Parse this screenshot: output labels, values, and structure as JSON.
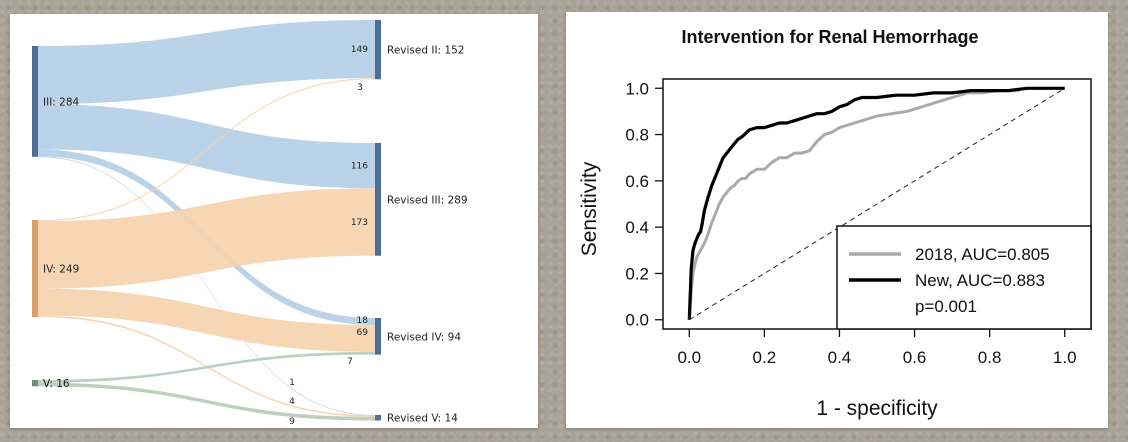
{
  "colors": {
    "node": "#4d6f93",
    "node_orange": "#d9a06a",
    "node_green": "#6b8f78",
    "link_blue": "#b5cfe6",
    "link_orange": "#f5d3ae",
    "link_green": "#b9cbbb",
    "roc_2018": "#aaaaaa",
    "roc_new": "#000000"
  },
  "chart_data": [
    {
      "type": "sankey",
      "sources": [
        {
          "id": "III",
          "label": "III: 284",
          "total": 284,
          "color_key": "node"
        },
        {
          "id": "IV",
          "label": "IV: 249",
          "total": 249,
          "color_key": "node_orange"
        },
        {
          "id": "V",
          "label": "V: 16",
          "total": 16,
          "color_key": "node_green"
        }
      ],
      "targets": [
        {
          "id": "RII",
          "label": "Revised II: 152",
          "total": 152
        },
        {
          "id": "RIII",
          "label": "Revised III: 289",
          "total": 289
        },
        {
          "id": "RIV",
          "label": "Revised IV: 94",
          "total": 94
        },
        {
          "id": "RV",
          "label": "Revised V: 14",
          "total": 14
        }
      ],
      "links": [
        {
          "from": "III",
          "to": "RII",
          "value": 149,
          "color_key": "link_blue"
        },
        {
          "from": "III",
          "to": "RIII",
          "value": 116,
          "color_key": "link_blue"
        },
        {
          "from": "III",
          "to": "RIV",
          "value": 18,
          "color_key": "link_blue"
        },
        {
          "from": "III",
          "to": "RV",
          "value": 1,
          "color_key": "link_blue"
        },
        {
          "from": "IV",
          "to": "RII",
          "value": 3,
          "color_key": "link_orange"
        },
        {
          "from": "IV",
          "to": "RIII",
          "value": 173,
          "color_key": "link_orange"
        },
        {
          "from": "IV",
          "to": "RIV",
          "value": 69,
          "color_key": "link_orange"
        },
        {
          "from": "IV",
          "to": "RV",
          "value": 4,
          "color_key": "link_orange"
        },
        {
          "from": "V",
          "to": "RIV",
          "value": 7,
          "color_key": "link_green"
        },
        {
          "from": "V",
          "to": "RV",
          "value": 9,
          "color_key": "link_green"
        }
      ]
    },
    {
      "type": "line",
      "title": "Intervention for Renal Hemorrhage",
      "xlabel": "1 - specificity",
      "ylabel": "Sensitivity",
      "xlim": [
        -0.07,
        1.07
      ],
      "ylim": [
        -0.04,
        1.04
      ],
      "xticks": [
        "0.0",
        "0.2",
        "0.4",
        "0.6",
        "0.8",
        "1.0"
      ],
      "yticks": [
        "0.0",
        "0.2",
        "0.4",
        "0.6",
        "0.8",
        "1.0"
      ],
      "legend_position": "bottom-right",
      "legend": [
        "2018, AUC=0.805",
        "New, AUC=0.883",
        "p=0.001"
      ],
      "reference_line": {
        "x": [
          0,
          1
        ],
        "y": [
          0,
          1
        ],
        "style": "dashed"
      },
      "series": [
        {
          "name": "2018, AUC=0.805",
          "color_key": "roc_2018",
          "x": [
            0,
            0.005,
            0.01,
            0.015,
            0.02,
            0.03,
            0.04,
            0.05,
            0.06,
            0.07,
            0.08,
            0.09,
            0.1,
            0.11,
            0.12,
            0.13,
            0.14,
            0.15,
            0.16,
            0.17,
            0.18,
            0.2,
            0.22,
            0.24,
            0.26,
            0.28,
            0.3,
            0.32,
            0.34,
            0.36,
            0.38,
            0.4,
            0.42,
            0.44,
            0.46,
            0.5,
            0.54,
            0.58,
            0.62,
            0.66,
            0.7,
            0.74,
            0.78,
            0.82,
            0.88
          ],
          "y": [
            0,
            0.12,
            0.2,
            0.24,
            0.27,
            0.3,
            0.33,
            0.37,
            0.42,
            0.46,
            0.5,
            0.53,
            0.55,
            0.57,
            0.58,
            0.6,
            0.61,
            0.61,
            0.63,
            0.64,
            0.65,
            0.65,
            0.68,
            0.7,
            0.7,
            0.72,
            0.72,
            0.73,
            0.77,
            0.8,
            0.81,
            0.83,
            0.84,
            0.85,
            0.86,
            0.88,
            0.89,
            0.9,
            0.92,
            0.94,
            0.96,
            0.98,
            0.98,
            0.99,
            0.99
          ]
        },
        {
          "name": "New, AUC=0.883",
          "color_key": "roc_new",
          "x": [
            0,
            0.005,
            0.01,
            0.015,
            0.02,
            0.025,
            0.03,
            0.035,
            0.04,
            0.05,
            0.06,
            0.07,
            0.08,
            0.09,
            0.1,
            0.11,
            0.12,
            0.13,
            0.14,
            0.16,
            0.18,
            0.2,
            0.22,
            0.24,
            0.26,
            0.28,
            0.3,
            0.32,
            0.34,
            0.36,
            0.38,
            0.4,
            0.42,
            0.44,
            0.46,
            0.5,
            0.55,
            0.6,
            0.65,
            0.7,
            0.75,
            0.8,
            0.85,
            0.9,
            0.95,
            1.0
          ],
          "y": [
            0,
            0.22,
            0.3,
            0.33,
            0.35,
            0.37,
            0.38,
            0.42,
            0.47,
            0.53,
            0.58,
            0.62,
            0.66,
            0.7,
            0.72,
            0.74,
            0.76,
            0.78,
            0.79,
            0.82,
            0.83,
            0.83,
            0.84,
            0.85,
            0.85,
            0.86,
            0.87,
            0.88,
            0.89,
            0.89,
            0.9,
            0.92,
            0.93,
            0.95,
            0.96,
            0.96,
            0.97,
            0.97,
            0.98,
            0.98,
            0.99,
            0.99,
            0.99,
            1.0,
            1.0,
            1.0
          ]
        }
      ]
    }
  ]
}
